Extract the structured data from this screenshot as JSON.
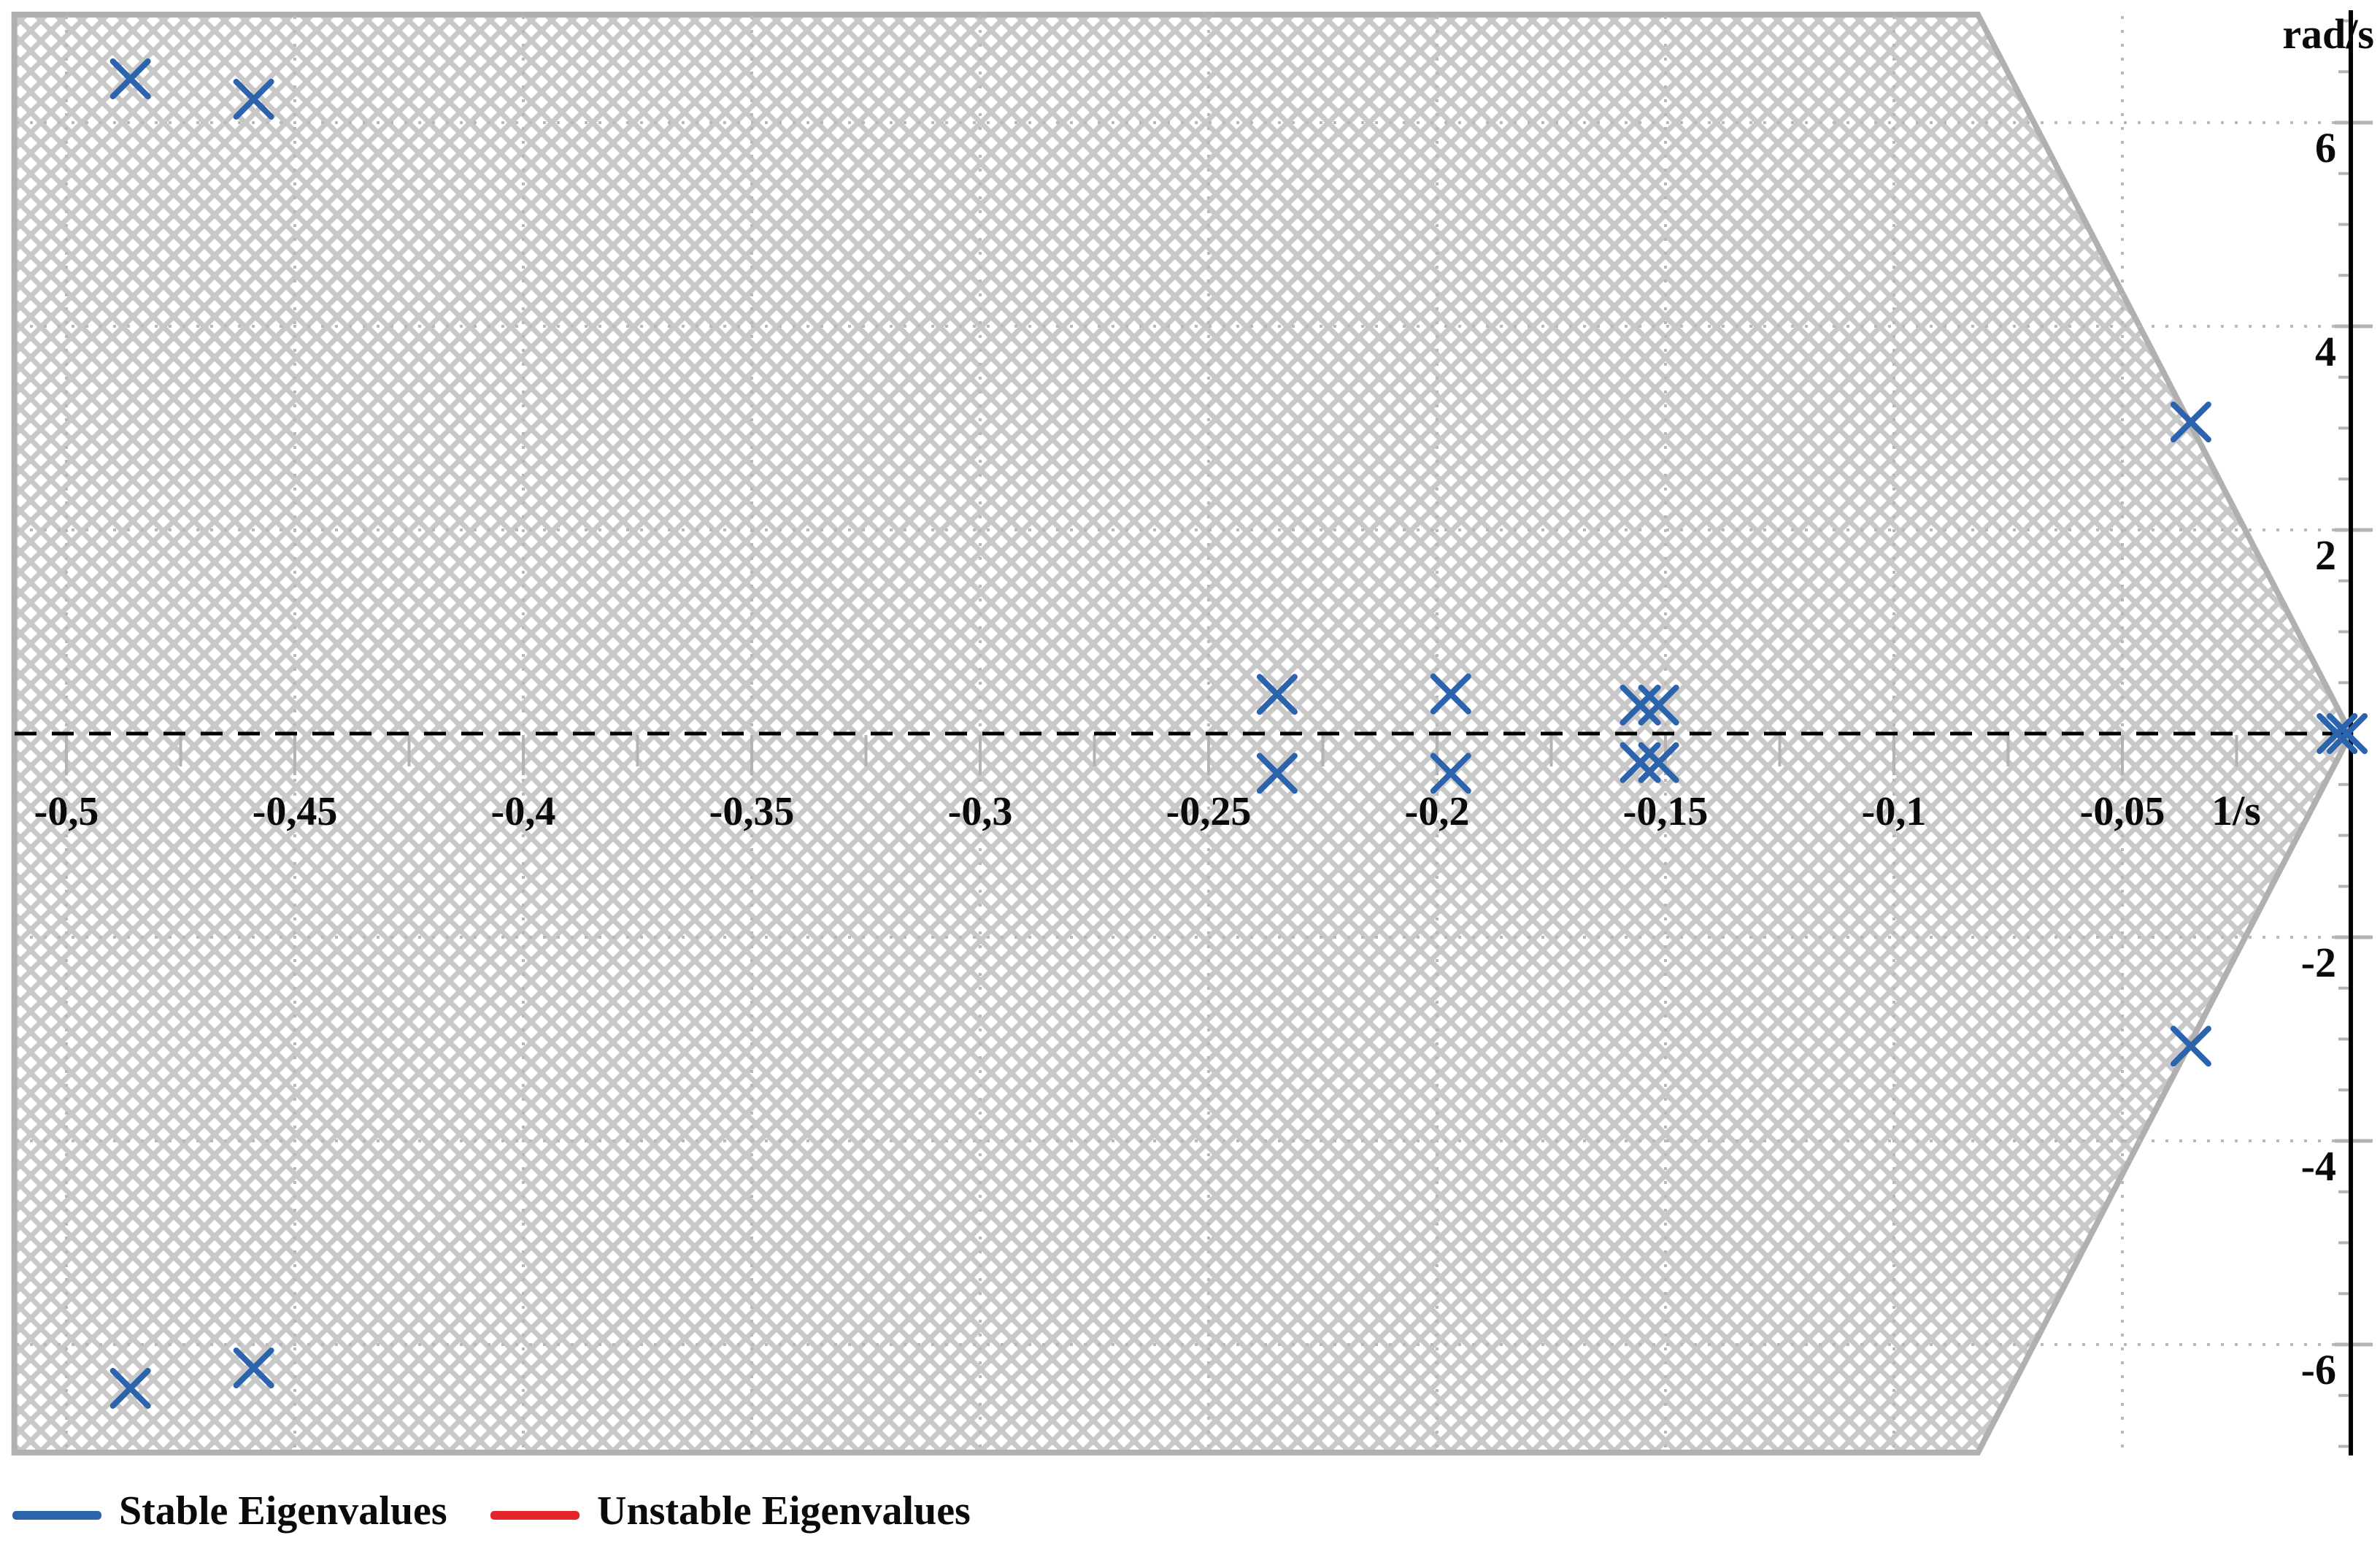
{
  "chart_data": {
    "type": "scatter",
    "title": "",
    "xlabel": "1/s",
    "ylabel": "rad/s",
    "xlim": [
      -0.5114,
      0.0064
    ],
    "ylim": [
      -7.06,
      7.06
    ],
    "grid": "dotted at labeled ticks",
    "legend_position": "bottom-left",
    "x_axis": {
      "unit_label": "1/s",
      "ticks": [
        {
          "v": -0.5,
          "label": "-0,5"
        },
        {
          "v": -0.475,
          "label": null
        },
        {
          "v": -0.45,
          "label": "-0,45"
        },
        {
          "v": -0.425,
          "label": null
        },
        {
          "v": -0.4,
          "label": "-0,4"
        },
        {
          "v": -0.375,
          "label": null
        },
        {
          "v": -0.35,
          "label": "-0,35"
        },
        {
          "v": -0.325,
          "label": null
        },
        {
          "v": -0.3,
          "label": "-0,3"
        },
        {
          "v": -0.275,
          "label": null
        },
        {
          "v": -0.25,
          "label": "-0,25"
        },
        {
          "v": -0.225,
          "label": null
        },
        {
          "v": -0.2,
          "label": "-0,2"
        },
        {
          "v": -0.175,
          "label": null
        },
        {
          "v": -0.15,
          "label": "-0,15"
        },
        {
          "v": -0.125,
          "label": null
        },
        {
          "v": -0.1,
          "label": "-0,1"
        },
        {
          "v": -0.075,
          "label": null
        },
        {
          "v": -0.05,
          "label": "-0,05"
        },
        {
          "v": -0.025,
          "label": null
        }
      ]
    },
    "y_axis": {
      "unit_label": "rad/s",
      "minor_ticks": [
        -7,
        -6.5,
        -6,
        -5.5,
        -5,
        -4.5,
        -4,
        -3.5,
        -3,
        -2.5,
        -2,
        -1.5,
        -1,
        -0.5,
        0.5,
        1,
        1.5,
        2,
        2.5,
        3,
        3.5,
        4,
        4.5,
        5,
        5.5,
        6,
        6.5,
        7
      ],
      "gridlines": [
        {
          "value": 6,
          "label": "6"
        },
        {
          "value": 4,
          "label": "4"
        },
        {
          "value": 2,
          "label": "2"
        },
        {
          "value": -2,
          "label": "-2"
        },
        {
          "value": -4,
          "label": "-4"
        },
        {
          "value": -6,
          "label": "-6"
        }
      ]
    },
    "stability_region": {
      "description": "cross-hatched left-half-plane wedge converging to origin",
      "vertices": [
        [
          -0.5114,
          7.061
        ],
        [
          -0.0816,
          7.061
        ],
        [
          0.0,
          0.0
        ],
        [
          -0.0816,
          -7.061
        ],
        [
          -0.5114,
          -7.061
        ]
      ]
    },
    "series": [
      {
        "name": "Stable Eigenvalues",
        "color": "#2b63ad",
        "marker": "x",
        "points": [
          [
            -0.486,
            6.43
          ],
          [
            -0.459,
            6.23
          ],
          [
            -0.486,
            -6.43
          ],
          [
            -0.459,
            -6.23
          ],
          [
            -0.235,
            0.385
          ],
          [
            -0.197,
            0.39
          ],
          [
            -0.235,
            -0.39
          ],
          [
            -0.197,
            -0.39
          ],
          [
            -0.1555,
            0.28
          ],
          [
            -0.1515,
            0.28
          ],
          [
            -0.1555,
            -0.285
          ],
          [
            -0.1515,
            -0.285
          ],
          [
            -0.035,
            3.06
          ],
          [
            -0.035,
            -3.07
          ],
          [
            -0.003,
            0.0
          ],
          [
            -0.0008,
            0.0
          ]
        ]
      },
      {
        "name": "Unstable Eigenvalues",
        "color": "#e5252b",
        "marker": "x",
        "points": []
      }
    ],
    "colors": {
      "marker_blue": "#2b63ad",
      "legend_red": "#e5252b",
      "grid_gray": "#b9b9b9",
      "tick_gray": "#b3b3b3",
      "border_gray": "#b0b0b0",
      "hatch_gray": "#c8c8c8",
      "axis_black": "#000000"
    }
  },
  "legend": {
    "items": [
      {
        "label": "Stable Eigenvalues",
        "color": "#2b63ad"
      },
      {
        "label": "Unstable Eigenvalues",
        "color": "#e5252b"
      }
    ]
  }
}
